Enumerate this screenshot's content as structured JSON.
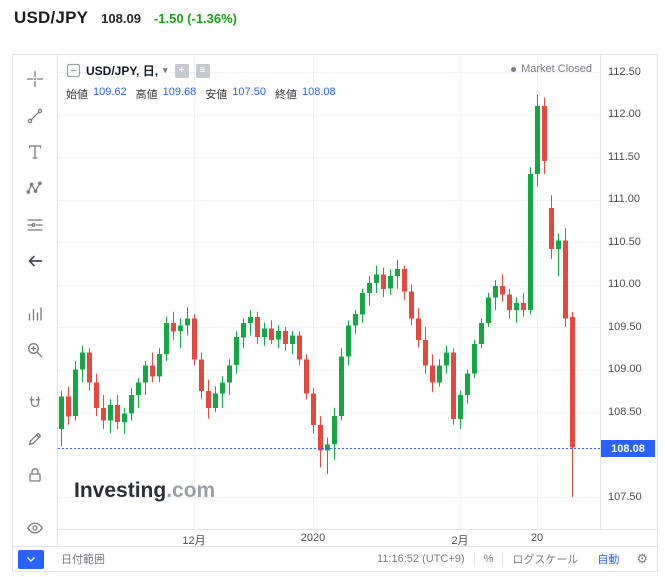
{
  "header": {
    "symbol": "USD/JPY",
    "price": "108.09",
    "change": "-1.50 (-1.36%)"
  },
  "colors": {
    "accent_blue": "#2962ff",
    "up_green": "#14a845",
    "down_red": "#e5483d",
    "change_green": "#12a30f"
  },
  "legend": {
    "symbol_text": "USD/JPY, 日,",
    "open_label": "始値",
    "open": "109.62",
    "high_label": "高値",
    "high": "109.68",
    "low_label": "安値",
    "low": "107.50",
    "close_label": "終値",
    "close": "108.08"
  },
  "status": {
    "market_closed": "Market Closed"
  },
  "watermark": {
    "bold": "Investing",
    "light": ".com"
  },
  "left_toolbar": {
    "groups": [
      [
        "crosshair-cursor-icon",
        "trend-line-icon",
        "text-tool-icon",
        "xabcd-pattern-icon",
        "fib-retracement-icon",
        "arrow-left-icon"
      ],
      [
        "forecast-bars-icon",
        "zoom-in-icon"
      ],
      [
        "magnet-icon",
        "pencil-icon",
        "lock-icon"
      ],
      [
        "eye-icon"
      ]
    ],
    "more_button": "chevron-down-icon"
  },
  "bottom_bar": {
    "date_range": "日付範囲",
    "clock": "11:16:52 (UTC+9)",
    "percent": "%",
    "log_scale": "ログスケール",
    "auto": "自動"
  },
  "chart_data": {
    "type": "candlestick",
    "title": "USD/JPY 日足",
    "symbol": "USD/JPY",
    "interval": "日",
    "ylim": [
      107.1,
      112.7
    ],
    "grid": true,
    "last_close": 108.08,
    "price_axis_ticks": [
      "112.50",
      "112.00",
      "111.50",
      "111.00",
      "110.50",
      "110.00",
      "109.50",
      "109.00",
      "108.50",
      "108.00",
      "107.50"
    ],
    "time_ticks": [
      {
        "index": 19,
        "label": "12月"
      },
      {
        "index": 36,
        "label": "2020"
      },
      {
        "index": 57,
        "label": "2月"
      },
      {
        "index": 68,
        "label": "20"
      }
    ],
    "candles": [
      [
        108.3,
        108.75,
        108.1,
        108.68
      ],
      [
        108.68,
        108.8,
        108.35,
        108.45
      ],
      [
        108.45,
        109.1,
        108.4,
        109.0
      ],
      [
        109.0,
        109.28,
        108.85,
        109.2
      ],
      [
        109.2,
        109.25,
        108.75,
        108.85
      ],
      [
        108.85,
        108.95,
        108.45,
        108.55
      ],
      [
        108.55,
        108.7,
        108.3,
        108.4
      ],
      [
        108.4,
        108.65,
        108.25,
        108.58
      ],
      [
        108.58,
        108.7,
        108.3,
        108.38
      ],
      [
        108.38,
        108.55,
        108.24,
        108.48
      ],
      [
        108.48,
        108.78,
        108.4,
        108.7
      ],
      [
        108.7,
        108.9,
        108.55,
        108.85
      ],
      [
        108.85,
        109.1,
        108.7,
        109.05
      ],
      [
        109.05,
        109.2,
        108.85,
        108.92
      ],
      [
        108.92,
        109.25,
        108.85,
        109.18
      ],
      [
        109.18,
        109.62,
        109.1,
        109.55
      ],
      [
        109.55,
        109.68,
        109.35,
        109.45
      ],
      [
        109.45,
        109.6,
        109.25,
        109.52
      ],
      [
        109.52,
        109.73,
        109.4,
        109.6
      ],
      [
        109.6,
        109.65,
        109.05,
        109.12
      ],
      [
        109.12,
        109.2,
        108.65,
        108.75
      ],
      [
        108.75,
        108.88,
        108.42,
        108.55
      ],
      [
        108.55,
        108.8,
        108.5,
        108.72
      ],
      [
        108.72,
        108.92,
        108.55,
        108.85
      ],
      [
        108.85,
        109.12,
        108.7,
        109.05
      ],
      [
        109.05,
        109.45,
        108.95,
        109.38
      ],
      [
        109.38,
        109.6,
        109.25,
        109.55
      ],
      [
        109.55,
        109.7,
        109.4,
        109.62
      ],
      [
        109.62,
        109.68,
        109.3,
        109.38
      ],
      [
        109.38,
        109.55,
        109.28,
        109.48
      ],
      [
        109.48,
        109.58,
        109.3,
        109.35
      ],
      [
        109.35,
        109.52,
        109.25,
        109.45
      ],
      [
        109.45,
        109.5,
        109.22,
        109.3
      ],
      [
        109.3,
        109.45,
        109.18,
        109.4
      ],
      [
        109.4,
        109.45,
        109.05,
        109.12
      ],
      [
        109.12,
        109.18,
        108.65,
        108.72
      ],
      [
        108.72,
        108.78,
        108.25,
        108.35
      ],
      [
        108.35,
        108.45,
        107.85,
        108.05
      ],
      [
        108.05,
        108.2,
        107.77,
        108.12
      ],
      [
        108.12,
        108.55,
        107.94,
        108.45
      ],
      [
        108.45,
        109.25,
        108.4,
        109.15
      ],
      [
        109.15,
        109.58,
        109.05,
        109.52
      ],
      [
        109.52,
        109.7,
        109.42,
        109.65
      ],
      [
        109.65,
        109.95,
        109.55,
        109.9
      ],
      [
        109.9,
        110.1,
        109.75,
        110.02
      ],
      [
        110.02,
        110.22,
        109.9,
        110.12
      ],
      [
        110.12,
        110.2,
        109.85,
        109.95
      ],
      [
        109.95,
        110.18,
        109.88,
        110.1
      ],
      [
        110.1,
        110.29,
        109.95,
        110.18
      ],
      [
        110.18,
        110.22,
        109.82,
        109.92
      ],
      [
        109.92,
        110.0,
        109.52,
        109.6
      ],
      [
        109.6,
        109.72,
        109.26,
        109.35
      ],
      [
        109.35,
        109.5,
        108.95,
        109.05
      ],
      [
        109.05,
        109.18,
        108.73,
        108.85
      ],
      [
        108.85,
        109.12,
        108.8,
        109.05
      ],
      [
        109.05,
        109.28,
        108.95,
        109.2
      ],
      [
        109.2,
        109.25,
        108.35,
        108.42
      ],
      [
        108.42,
        108.75,
        108.3,
        108.7
      ],
      [
        108.7,
        109.0,
        108.6,
        108.95
      ],
      [
        108.95,
        109.35,
        108.9,
        109.3
      ],
      [
        109.3,
        109.6,
        109.25,
        109.55
      ],
      [
        109.55,
        109.9,
        109.5,
        109.85
      ],
      [
        109.85,
        110.05,
        109.7,
        109.98
      ],
      [
        109.98,
        110.12,
        109.8,
        109.88
      ],
      [
        109.88,
        109.95,
        109.6,
        109.7
      ],
      [
        109.7,
        109.85,
        109.55,
        109.78
      ],
      [
        109.78,
        109.9,
        109.62,
        109.7
      ],
      [
        109.7,
        111.38,
        109.65,
        111.3
      ],
      [
        111.3,
        112.23,
        111.15,
        112.1
      ],
      [
        112.1,
        112.2,
        111.3,
        111.45
      ],
      [
        110.9,
        111.05,
        110.3,
        110.42
      ],
      [
        110.42,
        110.6,
        110.1,
        110.52
      ],
      [
        110.52,
        110.66,
        109.5,
        109.6
      ],
      [
        109.62,
        109.68,
        107.5,
        108.08
      ]
    ]
  }
}
